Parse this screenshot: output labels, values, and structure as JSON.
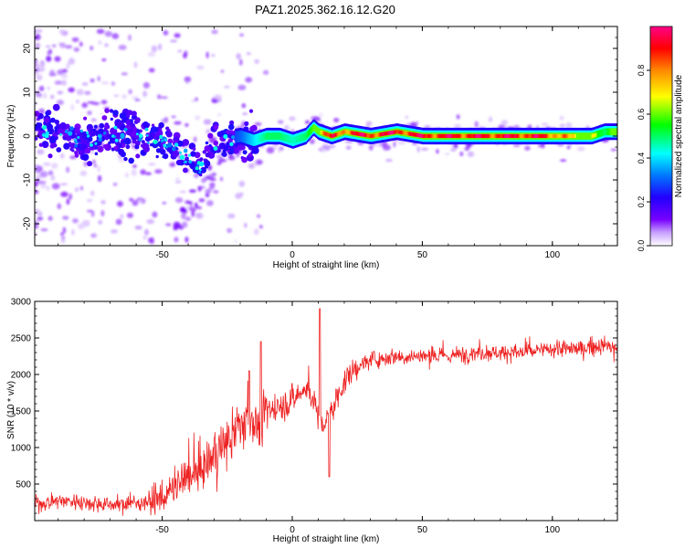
{
  "chart_data": [
    {
      "type": "heatmap",
      "title": "PAZ1.2025.362.16.12.G20",
      "xlabel": "Height of straight line (km)",
      "ylabel": "Frequency (Hz)",
      "xlim": [
        -99,
        125
      ],
      "ylim": [
        -25,
        25
      ],
      "xticks": [
        -50,
        0,
        50,
        100
      ],
      "yticks": [
        20,
        10,
        0,
        -10,
        -20
      ],
      "colorbar": {
        "label": "Normalized spectral amplitude",
        "range": [
          0,
          1
        ],
        "ticks": [
          0.0,
          0.2,
          0.4,
          0.6,
          0.8
        ],
        "colormap": "rainbow (purple → blue → cyan → green → yellow → orange → red → pink)"
      },
      "ridge": {
        "description": "Main spectral ridge frequency vs height",
        "x": [
          -99,
          -90,
          -80,
          -70,
          -60,
          -50,
          -40,
          -35,
          -30,
          -20,
          -15,
          -10,
          -5,
          0,
          5,
          8,
          10,
          15,
          20,
          30,
          40,
          50,
          60,
          70,
          80,
          90,
          100,
          110,
          115,
          120,
          125
        ],
        "frequency": [
          2,
          1,
          -1,
          0,
          1,
          -1,
          -5,
          -7,
          -1,
          0,
          -1,
          0,
          0,
          -1,
          0,
          2,
          1,
          0,
          1,
          0,
          1,
          0,
          0,
          0,
          0,
          0,
          0,
          0,
          0,
          1,
          1
        ],
        "amplitude": [
          0.35,
          0.2,
          0.3,
          0.15,
          0.3,
          0.15,
          0.2,
          0.15,
          0.2,
          0.3,
          0.4,
          0.5,
          0.5,
          0.45,
          0.5,
          0.6,
          0.7,
          0.85,
          0.85,
          0.9,
          0.9,
          0.9,
          0.9,
          0.9,
          0.9,
          0.9,
          0.85,
          0.6,
          0.6,
          0.5,
          0.7
        ]
      }
    },
    {
      "type": "line",
      "xlabel": "Height of straight line (km)",
      "ylabel": "SNR (10 * v/v)",
      "xlim": [
        -99,
        125
      ],
      "ylim": [
        0,
        3000
      ],
      "xticks": [
        -50,
        0,
        50,
        100
      ],
      "yticks": [
        500,
        1000,
        1500,
        2000,
        2500,
        3000
      ],
      "color": "#ee2222",
      "series": [
        {
          "name": "SNR",
          "x": [
            -99,
            -90,
            -80,
            -70,
            -60,
            -50,
            -45,
            -40,
            -35,
            -30,
            -25,
            -20,
            -15,
            -12,
            -10,
            -5,
            0,
            5,
            8,
            10,
            12,
            15,
            20,
            25,
            30,
            40,
            50,
            60,
            70,
            80,
            90,
            100,
            110,
            120,
            125
          ],
          "values": [
            220,
            280,
            250,
            220,
            240,
            300,
            450,
            600,
            700,
            900,
            1050,
            1300,
            1400,
            1200,
            1500,
            1550,
            1650,
            1800,
            1700,
            1400,
            1300,
            1500,
            1900,
            2100,
            2200,
            2250,
            2250,
            2250,
            2300,
            2300,
            2300,
            2350,
            2350,
            2400,
            2350
          ]
        }
      ]
    }
  ]
}
